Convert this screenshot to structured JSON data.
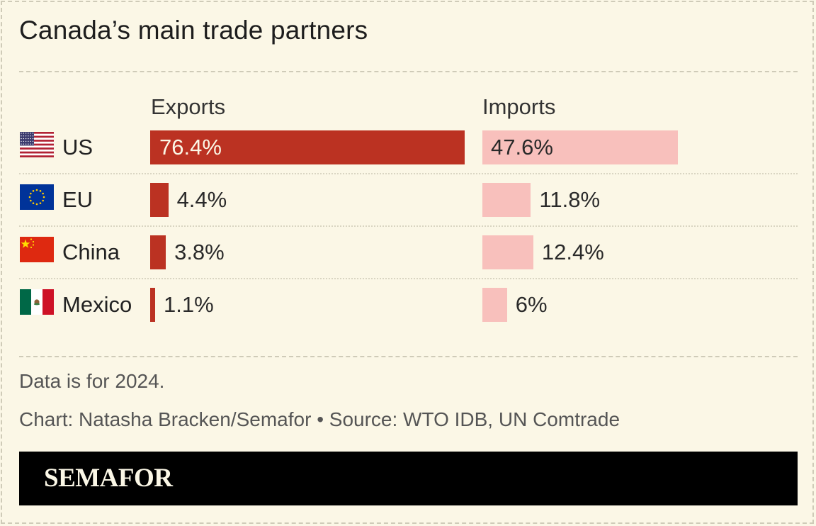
{
  "title": "Canada’s main trade partners",
  "chart_data": {
    "type": "bar",
    "categories": [
      "US",
      "EU",
      "China",
      "Mexico"
    ],
    "series": [
      {
        "name": "Exports",
        "values": [
          76.4,
          4.4,
          3.8,
          1.1
        ],
        "labels": [
          "76.4%",
          "4.4%",
          "3.8%",
          "1.1%"
        ],
        "color": "#bb3222"
      },
      {
        "name": "Imports",
        "values": [
          47.6,
          11.8,
          12.4,
          6
        ],
        "labels": [
          "47.6%",
          "11.8%",
          "12.4%",
          "6%"
        ],
        "color": "#f8c0bc"
      }
    ],
    "flags": [
      "us-flag-icon",
      "eu-flag-icon",
      "china-flag-icon",
      "mexico-flag-icon"
    ]
  },
  "note": "Data is for 2024.",
  "credit": "Chart: Natasha Bracken/Semafor • Source: WTO IDB, UN Comtrade",
  "brand": "SEMAFOR"
}
